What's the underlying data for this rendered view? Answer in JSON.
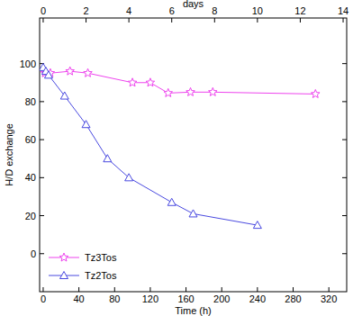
{
  "chart_data": {
    "type": "line",
    "xlabel": "Time (h)",
    "ylabel": "H/D exchange",
    "x2label": "days",
    "xlim": [
      -4,
      340
    ],
    "xticks": [
      0,
      40,
      80,
      120,
      160,
      200,
      240,
      280,
      320
    ],
    "x2lim": [
      -0.1667,
      14.1667
    ],
    "x2ticks": [
      0,
      2,
      4,
      6,
      8,
      10,
      12,
      14
    ],
    "ylim": [
      -20,
      124
    ],
    "yticks": [
      0,
      20,
      40,
      60,
      80,
      100
    ],
    "legend": "lower left",
    "series": [
      {
        "name": "Tz3Tos",
        "color": "#ee44ee",
        "marker": "star",
        "x": [
          2,
          8,
          30,
          50,
          100,
          120,
          140,
          165,
          190,
          305
        ],
        "values": [
          95,
          95,
          96,
          95,
          90,
          90,
          84.5,
          85,
          85,
          84
        ]
      },
      {
        "name": "Tz2Tos",
        "color": "#4a4ae0",
        "marker": "triangle",
        "x": [
          0,
          3,
          6,
          24,
          48,
          72,
          96,
          144,
          168,
          240
        ],
        "values": [
          98,
          96,
          94,
          83,
          68,
          50,
          40,
          27,
          21,
          15
        ]
      }
    ]
  }
}
